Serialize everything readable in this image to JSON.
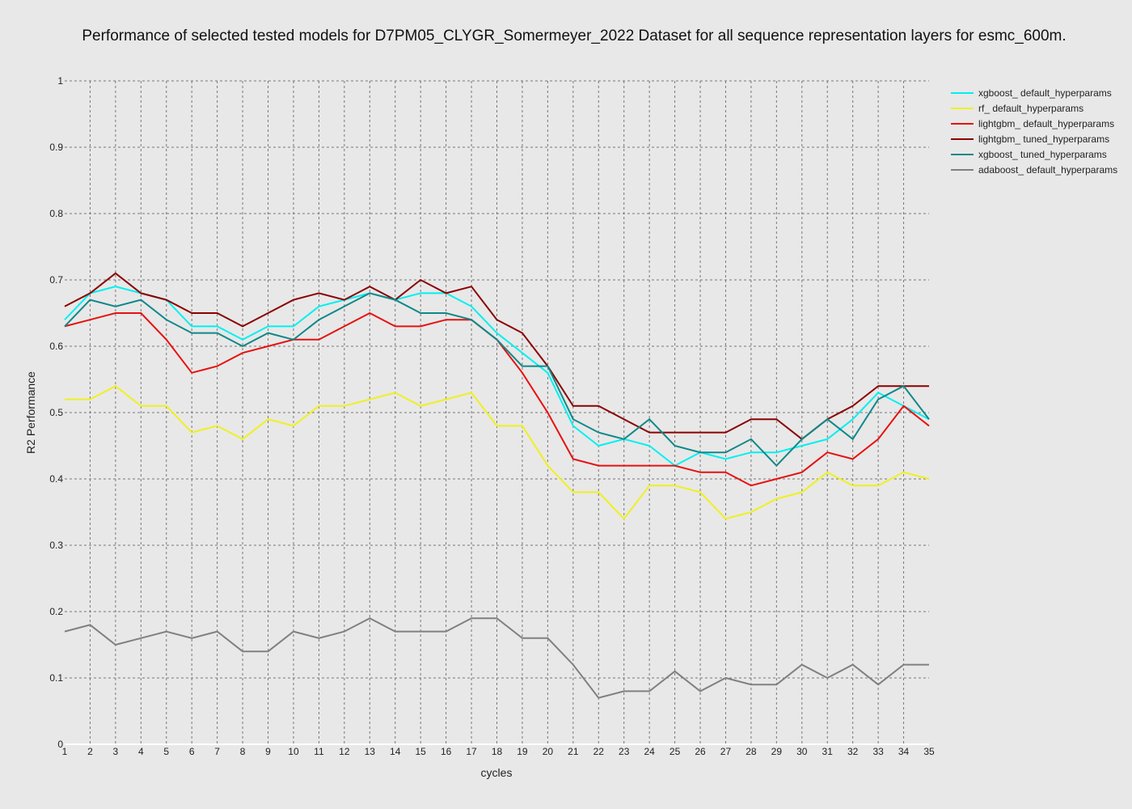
{
  "chart_data": {
    "type": "line",
    "title": "Performance of selected tested models for D7PM05_CLYGR_Somermeyer_2022 Dataset for all sequence representation layers for esmc_600m.",
    "xlabel": "cycles",
    "ylabel": "R2 Performance",
    "x": [
      1,
      2,
      3,
      4,
      5,
      6,
      7,
      8,
      9,
      10,
      11,
      12,
      13,
      14,
      15,
      16,
      17,
      18,
      19,
      20,
      21,
      22,
      23,
      24,
      25,
      26,
      27,
      28,
      29,
      30,
      31,
      32,
      33,
      34,
      35
    ],
    "xlim": [
      1,
      35
    ],
    "ylim": [
      0,
      1
    ],
    "yticks": [
      0,
      0.1,
      0.2,
      0.3,
      0.4,
      0.5,
      0.6,
      0.7,
      0.8,
      0.9,
      1
    ],
    "ytick_labels": [
      "0",
      "0.1",
      "0.2",
      "0.3",
      "0.4",
      "0.5",
      "0.6",
      "0.7",
      "0.8",
      "0.9",
      "1"
    ],
    "grid": true,
    "legend_position": "top-right",
    "series": [
      {
        "name": "xgboost_ default_hyperparams",
        "color": "#00f0f0",
        "values": [
          0.64,
          0.68,
          0.69,
          0.68,
          0.67,
          0.63,
          0.63,
          0.61,
          0.63,
          0.63,
          0.66,
          0.67,
          0.68,
          0.67,
          0.68,
          0.68,
          0.66,
          0.62,
          0.59,
          0.56,
          0.48,
          0.45,
          0.46,
          0.45,
          0.42,
          0.44,
          0.43,
          0.44,
          0.44,
          0.45,
          0.46,
          0.49,
          0.53,
          0.51,
          0.49
        ]
      },
      {
        "name": "rf_ default_hyperparams",
        "color": "#f0f020",
        "values": [
          0.52,
          0.52,
          0.54,
          0.51,
          0.51,
          0.47,
          0.48,
          0.46,
          0.49,
          0.48,
          0.51,
          0.51,
          0.52,
          0.53,
          0.51,
          0.52,
          0.53,
          0.48,
          0.48,
          0.42,
          0.38,
          0.38,
          0.34,
          0.39,
          0.39,
          0.38,
          0.34,
          0.35,
          0.37,
          0.38,
          0.41,
          0.39,
          0.39,
          0.41,
          0.4
        ]
      },
      {
        "name": "lightgbm_ default_hyperparams",
        "color": "#e81010",
        "values": [
          0.63,
          0.64,
          0.65,
          0.65,
          0.61,
          0.56,
          0.57,
          0.59,
          0.6,
          0.61,
          0.61,
          0.63,
          0.65,
          0.63,
          0.63,
          0.64,
          0.64,
          0.61,
          0.56,
          0.5,
          0.43,
          0.42,
          0.42,
          0.42,
          0.42,
          0.41,
          0.41,
          0.39,
          0.4,
          0.41,
          0.44,
          0.43,
          0.46,
          0.51,
          0.48
        ]
      },
      {
        "name": "lightgbm_ tuned_hyperparams",
        "color": "#8b0000",
        "values": [
          0.66,
          0.68,
          0.71,
          0.68,
          0.67,
          0.65,
          0.65,
          0.63,
          0.65,
          0.67,
          0.68,
          0.67,
          0.69,
          0.67,
          0.7,
          0.68,
          0.69,
          0.64,
          0.62,
          0.57,
          0.51,
          0.51,
          0.49,
          0.47,
          0.47,
          0.47,
          0.47,
          0.49,
          0.49,
          0.46,
          0.49,
          0.51,
          0.54,
          0.54,
          0.54
        ]
      },
      {
        "name": "xgboost_ tuned_hyperparams",
        "color": "#108888",
        "values": [
          0.63,
          0.67,
          0.66,
          0.67,
          0.64,
          0.62,
          0.62,
          0.6,
          0.62,
          0.61,
          0.64,
          0.66,
          0.68,
          0.67,
          0.65,
          0.65,
          0.64,
          0.61,
          0.57,
          0.57,
          0.49,
          0.47,
          0.46,
          0.49,
          0.45,
          0.44,
          0.44,
          0.46,
          0.42,
          0.46,
          0.49,
          0.46,
          0.52,
          0.54,
          0.49
        ]
      },
      {
        "name": "adaboost_ default_hyperparams",
        "color": "#808080",
        "values": [
          0.17,
          0.18,
          0.15,
          0.16,
          0.17,
          0.16,
          0.17,
          0.14,
          0.14,
          0.17,
          0.16,
          0.17,
          0.19,
          0.17,
          0.17,
          0.17,
          0.19,
          0.19,
          0.16,
          0.16,
          0.12,
          0.07,
          0.08,
          0.08,
          0.11,
          0.08,
          0.1,
          0.09,
          0.09,
          0.12,
          0.1,
          0.12,
          0.09,
          0.12,
          0.12
        ]
      }
    ]
  }
}
